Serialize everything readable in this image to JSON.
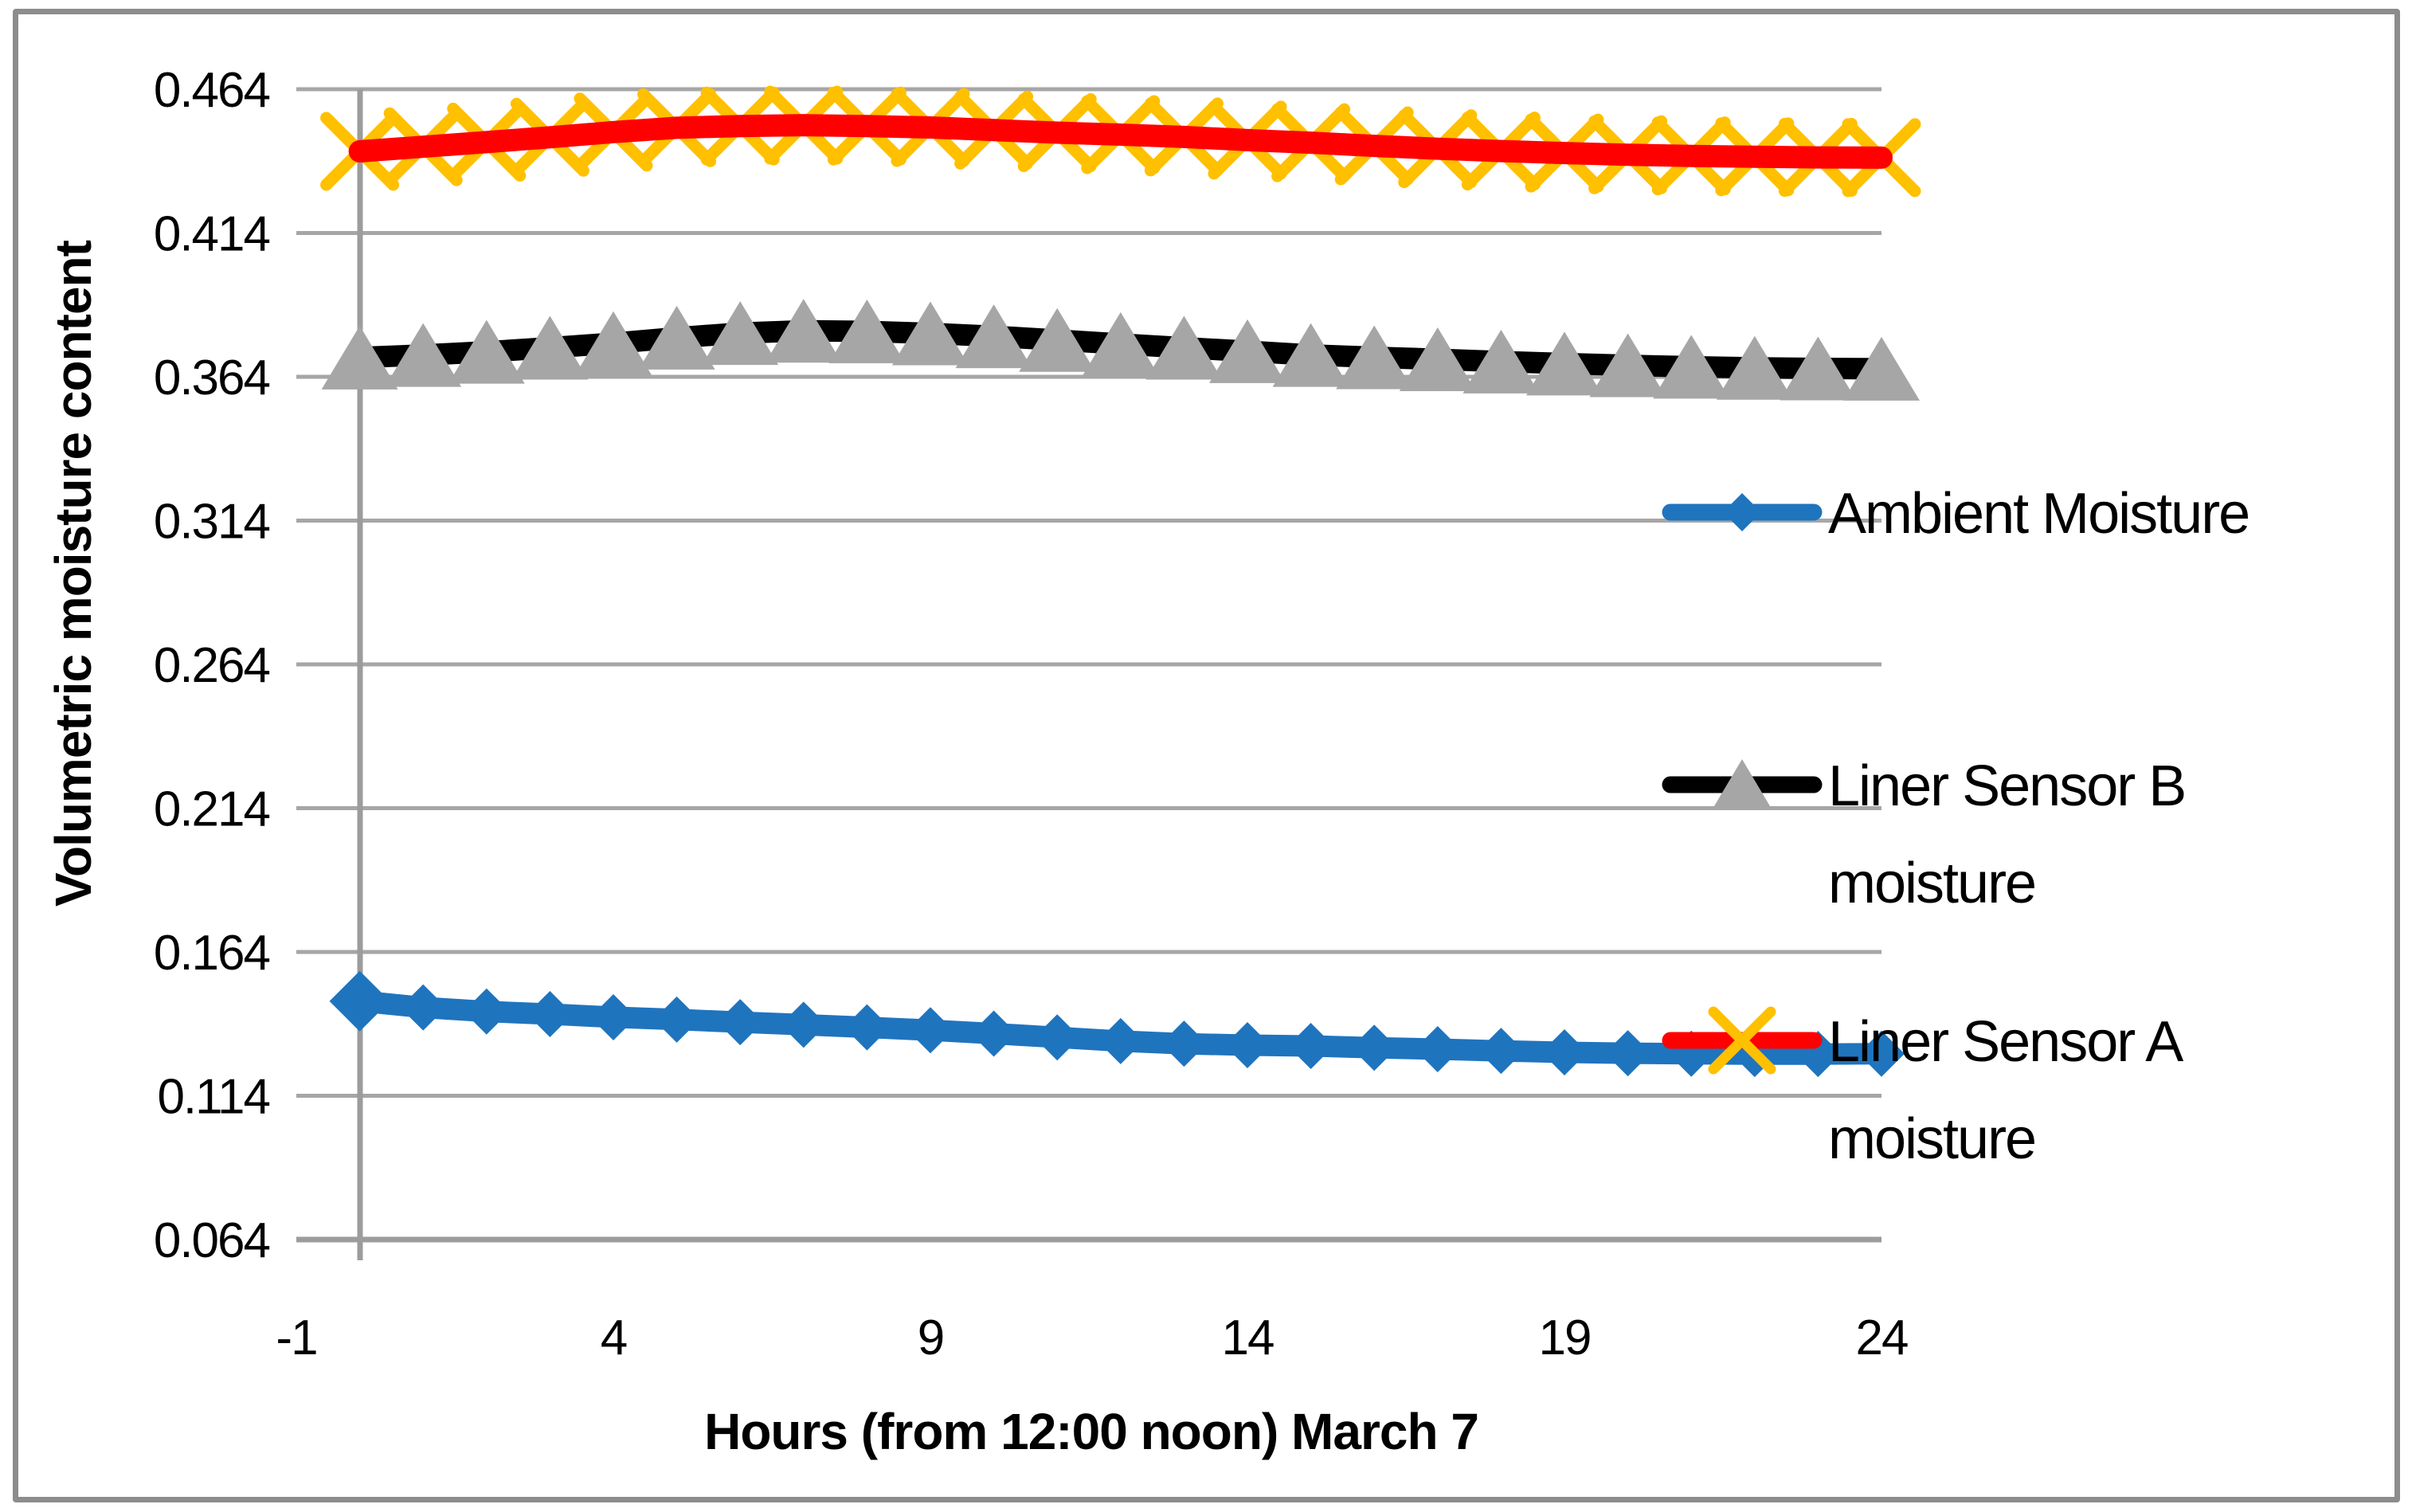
{
  "chart_data": {
    "type": "line",
    "title": "",
    "xlabel": "Hours (from 12:00 noon) March 7",
    "ylabel": "Volumetric moisture content",
    "xlim": [
      -1,
      24
    ],
    "ylim": [
      0.064,
      0.464
    ],
    "grid": "horizontal",
    "legend_position": "right-inside",
    "x_tick_labels": [
      "-1",
      "4",
      "9",
      "14",
      "19",
      "24"
    ],
    "x_ticks": [
      -1,
      4,
      9,
      14,
      19,
      24
    ],
    "y_tick_labels": [
      "0.464",
      "0.414",
      "0.364",
      "0.314",
      "0.264",
      "0.214",
      "0.164",
      "0.114",
      "0.064"
    ],
    "y_ticks": [
      0.464,
      0.414,
      0.364,
      0.314,
      0.264,
      0.214,
      0.164,
      0.114,
      0.064
    ],
    "x": [
      0,
      1,
      2,
      3,
      4,
      5,
      6,
      7,
      8,
      9,
      10,
      11,
      12,
      13,
      14,
      15,
      16,
      17,
      18,
      19,
      20,
      21,
      22,
      23,
      24
    ],
    "series": [
      {
        "name": "Ambient Moisture",
        "line_color": "#1F74BE",
        "marker": "diamond",
        "marker_color": "#1F74BE",
        "values": [
          0.1469,
          0.1447,
          0.1433,
          0.1424,
          0.1413,
          0.1405,
          0.1396,
          0.1387,
          0.1378,
          0.1368,
          0.1356,
          0.1343,
          0.133,
          0.1321,
          0.1316,
          0.1313,
          0.1307,
          0.1302,
          0.1296,
          0.1291,
          0.1288,
          0.1286,
          0.1285,
          0.1285,
          0.1286
        ]
      },
      {
        "name": "Liner Sensor B moisture",
        "line_color": "#000000",
        "marker": "triangle",
        "marker_color": "#A6A6A6",
        "values": [
          0.3707,
          0.3716,
          0.3727,
          0.3741,
          0.3757,
          0.3776,
          0.3792,
          0.38,
          0.3798,
          0.3791,
          0.3781,
          0.3768,
          0.3754,
          0.3741,
          0.3729,
          0.3716,
          0.3708,
          0.3701,
          0.3693,
          0.3686,
          0.368,
          0.3675,
          0.3671,
          0.3669,
          0.3668
        ]
      },
      {
        "name": "Liner Sensor A moisture",
        "line_color": "#FF0000",
        "marker": "x",
        "marker_color": "#FFC000",
        "values": [
          0.4424,
          0.444,
          0.4456,
          0.4473,
          0.4491,
          0.4506,
          0.4512,
          0.4515,
          0.4512,
          0.4507,
          0.4498,
          0.4489,
          0.4482,
          0.4474,
          0.4463,
          0.4454,
          0.4443,
          0.4433,
          0.4425,
          0.4418,
          0.4412,
          0.4408,
          0.4405,
          0.4403,
          0.4402
        ]
      }
    ]
  },
  "legend": {
    "items": [
      {
        "label": "Ambient Moisture",
        "lines": [
          "Ambient Moisture"
        ],
        "series_index": 0
      },
      {
        "label": "Liner Sensor B moisture",
        "lines": [
          "Liner Sensor B",
          "moisture"
        ],
        "series_index": 1
      },
      {
        "label": "Liner Sensor A moisture",
        "lines": [
          "Liner Sensor A",
          "moisture"
        ],
        "series_index": 2
      }
    ]
  },
  "colors": {
    "gridline": "#A6A6A6",
    "axis_line": "#9C9C9C",
    "chart_border": "#8C8C8C",
    "text": "#000000"
  }
}
